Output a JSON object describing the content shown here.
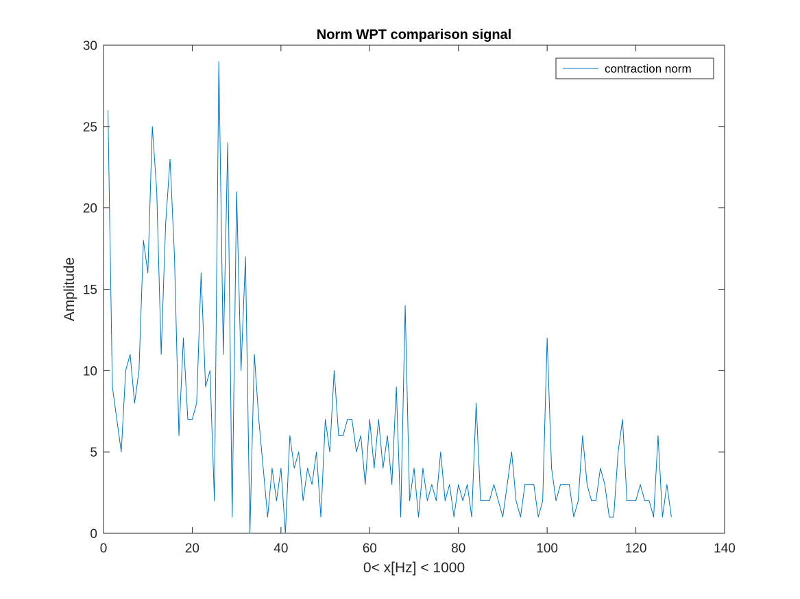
{
  "chart_data": {
    "type": "line",
    "title": "Norm WPT comparison signal",
    "xlabel": "0< x[Hz] < 1000",
    "ylabel": "Amplitude",
    "xlim": [
      0,
      140
    ],
    "ylim": [
      0,
      30
    ],
    "xticks": [
      "0",
      "20",
      "40",
      "60",
      "80",
      "100",
      "120",
      "140"
    ],
    "yticks": [
      "0",
      "5",
      "10",
      "15",
      "20",
      "25",
      "30"
    ],
    "grid": false,
    "legend_position": "top-right",
    "series": [
      {
        "name": "contraction norm",
        "color": "#0072BD",
        "x": [
          1,
          2,
          3,
          4,
          5,
          6,
          7,
          8,
          9,
          10,
          11,
          12,
          13,
          14,
          15,
          16,
          17,
          18,
          19,
          20,
          21,
          22,
          23,
          24,
          25,
          26,
          27,
          28,
          29,
          30,
          31,
          32,
          33,
          34,
          35,
          36,
          37,
          38,
          39,
          40,
          41,
          42,
          43,
          44,
          45,
          46,
          47,
          48,
          49,
          50,
          51,
          52,
          53,
          54,
          55,
          56,
          57,
          58,
          59,
          60,
          61,
          62,
          63,
          64,
          65,
          66,
          67,
          68,
          69,
          70,
          71,
          72,
          73,
          74,
          75,
          76,
          77,
          78,
          79,
          80,
          81,
          82,
          83,
          84,
          85,
          86,
          87,
          88,
          89,
          90,
          91,
          92,
          93,
          94,
          95,
          96,
          97,
          98,
          99,
          100,
          101,
          102,
          103,
          104,
          105,
          106,
          107,
          108,
          109,
          110,
          111,
          112,
          113,
          114,
          115,
          116,
          117,
          118,
          119,
          120,
          121,
          122,
          123,
          124,
          125,
          126,
          127,
          128
        ],
        "values": [
          26,
          9,
          7,
          5,
          10,
          11,
          8,
          10,
          18,
          16,
          25,
          21,
          11,
          19,
          23,
          17,
          6,
          12,
          7,
          7,
          8,
          16,
          9,
          10,
          2,
          29,
          11,
          24,
          1,
          21,
          10,
          17,
          0,
          11,
          7,
          4,
          1,
          4,
          2,
          4,
          0,
          6,
          4,
          5,
          2,
          4,
          3,
          5,
          1,
          7,
          5,
          10,
          6,
          6,
          7,
          7,
          5,
          6,
          3,
          7,
          4,
          7,
          4,
          6,
          3,
          9,
          1,
          14,
          2,
          4,
          1,
          4,
          2,
          3,
          2,
          5,
          2,
          3,
          1,
          3,
          2,
          3,
          1,
          8,
          2,
          2,
          2,
          3,
          2,
          1,
          3,
          5,
          2,
          1,
          3,
          3,
          3,
          1,
          2,
          12,
          4,
          2,
          3,
          3,
          3,
          1,
          2,
          6,
          3,
          2,
          2,
          4,
          3,
          1,
          1,
          5,
          7,
          2,
          2,
          2,
          3,
          2,
          2,
          1,
          6,
          1,
          3,
          1
        ]
      }
    ]
  }
}
